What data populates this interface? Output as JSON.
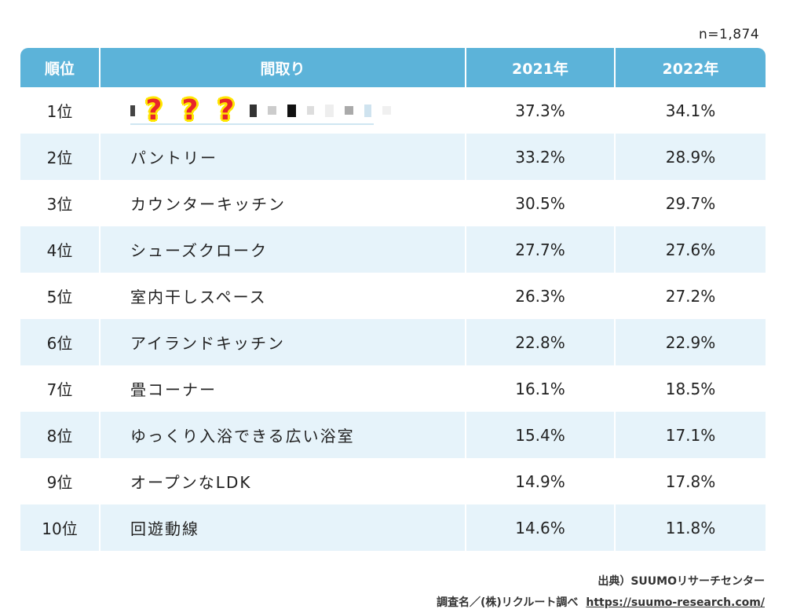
{
  "chart_data": {
    "type": "table",
    "sample_size": "n=1,874",
    "columns": [
      "順位",
      "間取り",
      "2021年",
      "2022年"
    ],
    "rows": [
      {
        "rank": "1位",
        "name": "",
        "y2021": "37.3%",
        "y2022": "34.1%"
      },
      {
        "rank": "2位",
        "name": "パントリー",
        "y2021": "33.2%",
        "y2022": "28.9%"
      },
      {
        "rank": "3位",
        "name": "カウンターキッチン",
        "y2021": "30.5%",
        "y2022": "29.7%"
      },
      {
        "rank": "4位",
        "name": "シューズクローク",
        "y2021": "27.7%",
        "y2022": "27.6%"
      },
      {
        "rank": "5位",
        "name": "室内干しスペース",
        "y2021": "26.3%",
        "y2022": "27.2%"
      },
      {
        "rank": "6位",
        "name": "アイランドキッチン",
        "y2021": "22.8%",
        "y2022": "22.9%"
      },
      {
        "rank": "7位",
        "name": "畳コーナー",
        "y2021": "16.1%",
        "y2022": "18.5%"
      },
      {
        "rank": "8位",
        "name": "ゆっくり入浴できる広い浴室",
        "y2021": "15.4%",
        "y2022": "17.1%"
      },
      {
        "rank": "9位",
        "name": "オープンなLDK",
        "y2021": "14.9%",
        "y2022": "17.8%"
      },
      {
        "rank": "10位",
        "name": "回遊動線",
        "y2021": "14.6%",
        "y2022": "11.8%"
      }
    ],
    "hidden_marks": [
      "?",
      "?",
      "?"
    ],
    "source": "出典）SUUMOリサーチセンター",
    "survey": "調査名／(株)リクルート調べ",
    "url": "https://suumo-research.com/"
  },
  "colors": {
    "header_bg": "#5cb3d9",
    "alt_row_bg": "#e6f3fa",
    "question_mark": "#e8262a",
    "question_outline": "#ffe600"
  }
}
